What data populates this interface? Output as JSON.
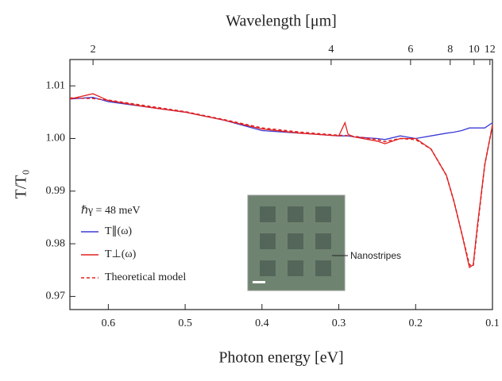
{
  "chart_data": {
    "type": "line",
    "xlabel": "Photon energy [eV]",
    "ylabel": "T/T₀",
    "x2label": "Wavelength [μm]",
    "xlim": [
      0.65,
      0.1
    ],
    "xticks": [
      0.6,
      0.5,
      0.4,
      0.3,
      0.2,
      0.1
    ],
    "ylim": [
      0.9675,
      1.015
    ],
    "yticks": [
      {
        "value": 0.97,
        "label": "0.97"
      },
      {
        "value": 0.98,
        "label": "0.98"
      },
      {
        "value": 0.99,
        "label": "0.99"
      },
      {
        "value": 1.0,
        "label": "1.00"
      },
      {
        "value": 1.01,
        "label": "1.01"
      }
    ],
    "x2ticks": [
      {
        "value": 0.6199,
        "label": "2"
      },
      {
        "value": 0.31,
        "label": "4"
      },
      {
        "value": 0.2066,
        "label": "6"
      },
      {
        "value": 0.155,
        "label": "8"
      },
      {
        "value": 0.124,
        "label": "10"
      },
      {
        "value": 0.1033,
        "label": "12"
      }
    ],
    "legend_title": "ℏγ = 48 meV",
    "legend": "lower-left",
    "grid": false,
    "annotation": "Nanostripes",
    "x": [
      0.65,
      0.62,
      0.6,
      0.55,
      0.5,
      0.45,
      0.4,
      0.35,
      0.3,
      0.292,
      0.288,
      0.28,
      0.25,
      0.24,
      0.22,
      0.2,
      0.18,
      0.16,
      0.15,
      0.14,
      0.13,
      0.125,
      0.12,
      0.11,
      0.1
    ],
    "series": [
      {
        "name": "T∥(ω)",
        "color": "#3b3bd6",
        "dash": false,
        "values": [
          1.0075,
          1.0078,
          1.007,
          1.006,
          1.005,
          1.0035,
          1.0015,
          1.001,
          1.0005,
          1.0005,
          1.0005,
          1.0003,
          1.0,
          0.9998,
          1.0005,
          1.0,
          1.0005,
          1.001,
          1.0012,
          1.0015,
          1.002,
          1.002,
          1.002,
          1.002,
          1.003
        ]
      },
      {
        "name": "T⊥(ω)",
        "color": "#e02020",
        "dash": false,
        "values": [
          1.0075,
          1.0085,
          1.0072,
          1.006,
          1.005,
          1.0035,
          1.0018,
          1.001,
          1.0005,
          1.003,
          1.0008,
          1.0003,
          0.9995,
          0.999,
          1.0,
          1.0,
          0.998,
          0.993,
          0.988,
          0.982,
          0.9755,
          0.976,
          0.983,
          0.995,
          1.0025
        ]
      },
      {
        "name": "Theoretical model",
        "color": "#e02020",
        "dash": true,
        "values": [
          1.0077,
          1.0076,
          1.0073,
          1.0062,
          1.0051,
          1.0036,
          1.002,
          1.0012,
          1.0006,
          1.0006,
          1.0005,
          1.0004,
          0.9998,
          0.9994,
          1.0,
          0.9998,
          0.998,
          0.993,
          0.988,
          0.982,
          0.976,
          0.9758,
          0.9825,
          0.995,
          1.0025
        ]
      }
    ]
  }
}
